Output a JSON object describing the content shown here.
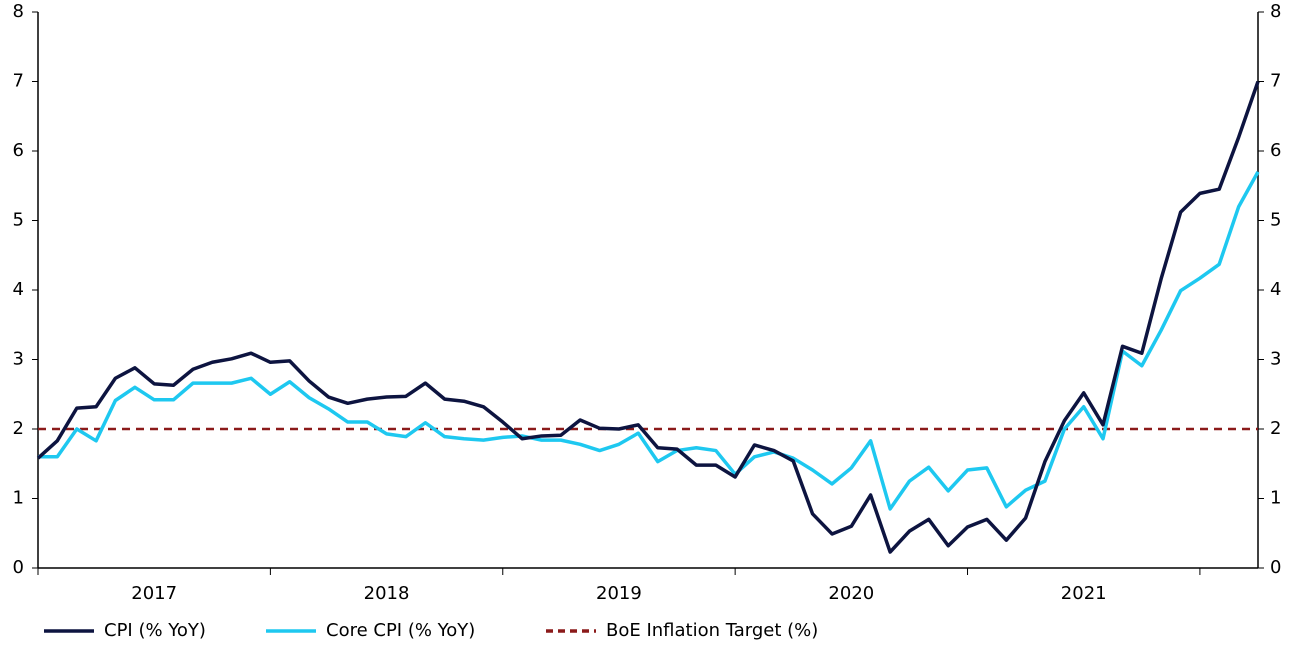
{
  "chart_data": {
    "type": "line",
    "x": [
      2017,
      2017.083,
      2017.167,
      2017.25,
      2017.333,
      2017.417,
      2017.5,
      2017.583,
      2017.667,
      2017.75,
      2017.833,
      2017.917,
      2018,
      2018.083,
      2018.167,
      2018.25,
      2018.333,
      2018.417,
      2018.5,
      2018.583,
      2018.667,
      2018.75,
      2018.833,
      2018.917,
      2019,
      2019.083,
      2019.167,
      2019.25,
      2019.333,
      2019.417,
      2019.5,
      2019.583,
      2019.667,
      2019.75,
      2019.833,
      2019.917,
      2020,
      2020.083,
      2020.167,
      2020.25,
      2020.333,
      2020.417,
      2020.5,
      2020.583,
      2020.667,
      2020.75,
      2020.833,
      2020.917,
      2021,
      2021.083,
      2021.167,
      2021.25,
      2021.333,
      2021.417,
      2021.5,
      2021.583,
      2021.667,
      2021.75,
      2021.833,
      2021.917,
      2022,
      2022.083,
      2022.167,
      2022.25
    ],
    "series": [
      {
        "name": "CPI (% YoY)",
        "color": "#0d1440",
        "values": [
          1.58,
          1.83,
          2.3,
          2.32,
          2.73,
          2.88,
          2.65,
          2.63,
          2.86,
          2.96,
          3.01,
          3.09,
          2.96,
          2.98,
          2.69,
          2.46,
          2.37,
          2.43,
          2.46,
          2.47,
          2.66,
          2.43,
          2.4,
          2.32,
          2.1,
          1.86,
          1.9,
          1.91,
          2.13,
          2.01,
          2.0,
          2.06,
          1.73,
          1.71,
          1.48,
          1.48,
          1.31,
          1.77,
          1.69,
          1.54,
          0.78,
          0.49,
          0.6,
          1.05,
          0.23,
          0.53,
          0.7,
          0.32,
          0.59,
          0.7,
          0.4,
          0.72,
          1.53,
          2.12,
          2.52,
          2.06,
          3.19,
          3.09,
          4.16,
          5.12,
          5.39,
          5.45,
          6.2,
          7.0
        ]
      },
      {
        "name": "Core CPI (% YoY)",
        "color": "#1ec8f0",
        "values": [
          1.6,
          1.6,
          2.0,
          1.83,
          2.41,
          2.6,
          2.42,
          2.42,
          2.66,
          2.66,
          2.66,
          2.73,
          2.5,
          2.68,
          2.45,
          2.29,
          2.1,
          2.1,
          1.93,
          1.89,
          2.09,
          1.89,
          1.86,
          1.84,
          1.88,
          1.9,
          1.84,
          1.84,
          1.78,
          1.69,
          1.78,
          1.94,
          1.53,
          1.69,
          1.73,
          1.69,
          1.35,
          1.6,
          1.67,
          1.58,
          1.41,
          1.21,
          1.44,
          1.83,
          0.85,
          1.25,
          1.45,
          1.11,
          1.41,
          1.44,
          0.88,
          1.12,
          1.25,
          2.0,
          2.32,
          1.86,
          3.12,
          2.91,
          3.42,
          3.99,
          4.17,
          4.37,
          5.2,
          5.7
        ]
      }
    ],
    "target": {
      "name": "BoE Inflation Target (%)",
      "color": "#8b1a1a",
      "value": 2
    },
    "xlim": [
      2017,
      2022.25
    ],
    "xticks": [
      2017,
      2018,
      2019,
      2020,
      2021,
      2022
    ],
    "year_labels": [
      "2017",
      "2018",
      "2019",
      "2020",
      "2021"
    ],
    "ylim": [
      0,
      8
    ],
    "yticks": [
      0,
      1,
      2,
      3,
      4,
      5,
      6,
      7,
      8
    ],
    "y2lim": [
      0,
      8
    ],
    "y2ticks": [
      0,
      1,
      2,
      3,
      4,
      5,
      6,
      7,
      8
    ],
    "legend": "bottom"
  }
}
